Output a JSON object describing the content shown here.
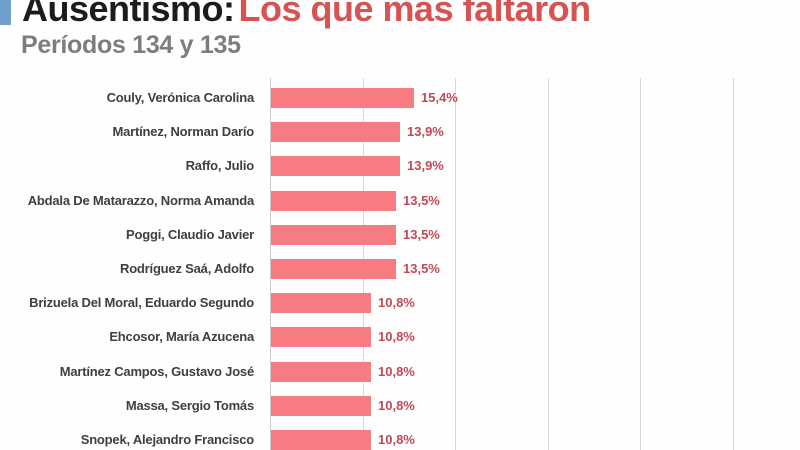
{
  "header": {
    "accent_color": "#6fa0cc",
    "title_prefix": "Ausentismo:",
    "title_prefix_color": "#1c1c1c",
    "title_highlight": "Los que más faltaron",
    "title_highlight_color": "#d95252",
    "subtitle": "Períodos 134 y 135",
    "subtitle_color": "#7d7d7d"
  },
  "chart_data": {
    "type": "bar",
    "orientation": "horizontal",
    "title": "Ausentismo: Los que más faltaron",
    "subtitle": "Períodos 134 y 135",
    "categories": [
      "Couly, Verónica Carolina",
      "Martínez, Norman Darío",
      "Raffo, Julio",
      "Abdala De Matarazzo, Norma Amanda",
      "Poggi, Claudio Javier",
      "Rodríguez Saá, Adolfo",
      "Brizuela Del Moral, Eduardo Segundo",
      "Ehcosor, María Azucena",
      "Martínez Campos, Gustavo José",
      "Massa, Sergio Tomás",
      "Snopek, Alejandro Francisco"
    ],
    "values": [
      15.4,
      13.9,
      13.9,
      13.5,
      13.5,
      13.5,
      10.8,
      10.8,
      10.8,
      10.8,
      10.8
    ],
    "value_labels": [
      "15,4%",
      "13,9%",
      "13,9%",
      "13,5%",
      "13,5%",
      "13,5%",
      "10,8%",
      "10,8%",
      "10,8%",
      "10,8%",
      "10,8%"
    ],
    "unit": "%",
    "xlim": [
      0,
      50
    ],
    "gridline_step": 10,
    "grid": "vertical-lines",
    "legend": "none",
    "bar_color": "#f67c81",
    "value_label_color": "#c14a55",
    "category_label_color": "#3f3f3f",
    "gridline_color": "#d8d8d8"
  }
}
